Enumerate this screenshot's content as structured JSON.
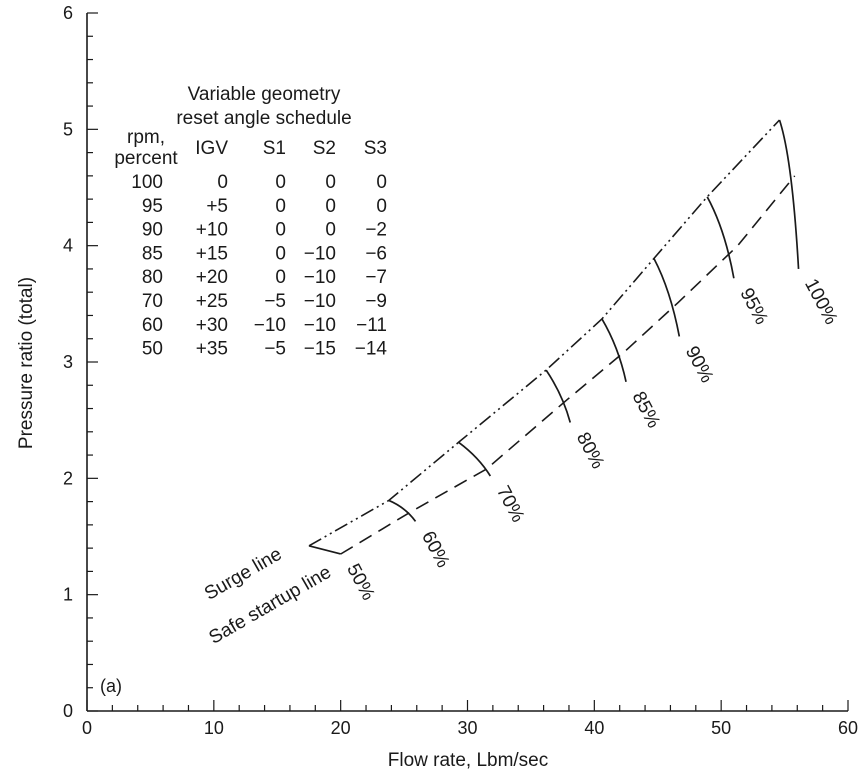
{
  "chart_data": {
    "type": "line",
    "panel_label": "(a)",
    "xlabel": "Flow rate, Lbm/sec",
    "ylabel": "Pressure ratio (total)",
    "xlim": [
      0,
      60
    ],
    "ylim": [
      0,
      6
    ],
    "x_ticks": [
      0,
      10,
      20,
      30,
      40,
      50,
      60
    ],
    "y_ticks": [
      0,
      1,
      2,
      3,
      4,
      5,
      6
    ],
    "series": [
      {
        "name": "Surge line",
        "style": "dash-dot-dot",
        "x": [
          17.5,
          23.8,
          29.3,
          36.2,
          40.6,
          44.7,
          48.9,
          54.6
        ],
        "y": [
          1.42,
          1.81,
          2.31,
          2.93,
          3.37,
          3.89,
          4.42,
          5.08
        ]
      },
      {
        "name": "Safe startup line",
        "style": "dashed",
        "x": [
          20.0,
          25.5,
          31.5,
          37.9,
          42.4,
          46.6,
          51.3,
          55.8
        ],
        "y": [
          1.35,
          1.71,
          2.08,
          2.68,
          3.09,
          3.51,
          4.0,
          4.6
        ]
      }
    ],
    "speed_lines": [
      {
        "label": "50%",
        "x": [
          17.5,
          20.0
        ],
        "y": [
          1.42,
          1.35
        ]
      },
      {
        "label": "60%",
        "x": [
          23.8,
          25.1,
          25.9
        ],
        "y": [
          1.81,
          1.75,
          1.63
        ]
      },
      {
        "label": "70%",
        "x": [
          29.3,
          30.9,
          31.8
        ],
        "y": [
          2.31,
          2.18,
          2.02
        ]
      },
      {
        "label": "80%",
        "x": [
          36.2,
          37.5,
          38.1
        ],
        "y": [
          2.93,
          2.72,
          2.48
        ]
      },
      {
        "label": "85%",
        "x": [
          40.6,
          41.9,
          42.5
        ],
        "y": [
          3.37,
          3.13,
          2.83
        ]
      },
      {
        "label": "90%",
        "x": [
          44.7,
          46.0,
          46.7
        ],
        "y": [
          3.89,
          3.62,
          3.22
        ]
      },
      {
        "label": "95%",
        "x": [
          48.9,
          50.3,
          51.0
        ],
        "y": [
          4.42,
          4.14,
          3.72
        ]
      },
      {
        "label": "100%",
        "x": [
          54.6,
          55.6,
          56.1
        ],
        "y": [
          5.08,
          4.75,
          3.8
        ]
      }
    ],
    "table": {
      "title_line1": "Variable geometry",
      "title_line2": "reset angle schedule",
      "header_rpm_line1": "rpm,",
      "header_rpm_line2": "percent",
      "headers": [
        "IGV",
        "S1",
        "S2",
        "S3"
      ],
      "rows": [
        [
          "100",
          "0",
          "0",
          "0",
          "0"
        ],
        [
          "95",
          "+5",
          "0",
          "0",
          "0"
        ],
        [
          "90",
          "+10",
          "0",
          "0",
          "−2"
        ],
        [
          "85",
          "+15",
          "0",
          "−10",
          "−6"
        ],
        [
          "80",
          "+20",
          "0",
          "−10",
          "−7"
        ],
        [
          "70",
          "+25",
          "−5",
          "−10",
          "−9"
        ],
        [
          "60",
          "+30",
          "−10",
          "−10",
          "−11"
        ],
        [
          "50",
          "+35",
          "−5",
          "−15",
          "−14"
        ]
      ]
    },
    "colors": {
      "ink": "#1a1a1a",
      "background": "#ffffff"
    }
  }
}
